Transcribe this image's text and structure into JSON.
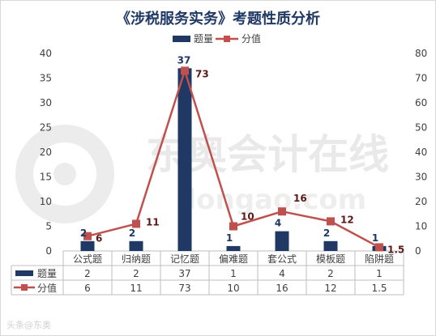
{
  "chart_data": {
    "type": "bar+line",
    "title": "《涉税服务实务》考题性质分析",
    "categories": [
      "公式题",
      "归纳题",
      "记忆题",
      "偏难题",
      "套公式",
      "模板题",
      "陷阱题"
    ],
    "series": [
      {
        "name": "题量",
        "type": "bar",
        "axis": "left",
        "values": [
          2,
          2,
          37,
          1,
          4,
          2,
          1
        ],
        "color": "#1f3864"
      },
      {
        "name": "分值",
        "type": "line",
        "axis": "right",
        "values": [
          6,
          11,
          73,
          10,
          16,
          12,
          1.5
        ],
        "color": "#c0504d"
      }
    ],
    "y_left": {
      "ylim": [
        0,
        40
      ],
      "ticks": [
        0,
        5,
        10,
        15,
        20,
        25,
        30,
        35,
        40
      ]
    },
    "y_right": {
      "ylim": [
        0,
        80
      ],
      "ticks": [
        0,
        10,
        20,
        30,
        40,
        50,
        60,
        70,
        80
      ]
    },
    "legend": "top-center",
    "grid": false,
    "data_table": true
  },
  "watermark": {
    "brand_text": "东奥会计在线",
    "url_text": "dongao.com"
  },
  "footer": {
    "source_text": "头条@东奥"
  },
  "colors": {
    "bar": "#1f3864",
    "line": "#c0504d",
    "table_border": "#bfbfbf",
    "axis": "#bfbfbf",
    "text": "#404040"
  }
}
